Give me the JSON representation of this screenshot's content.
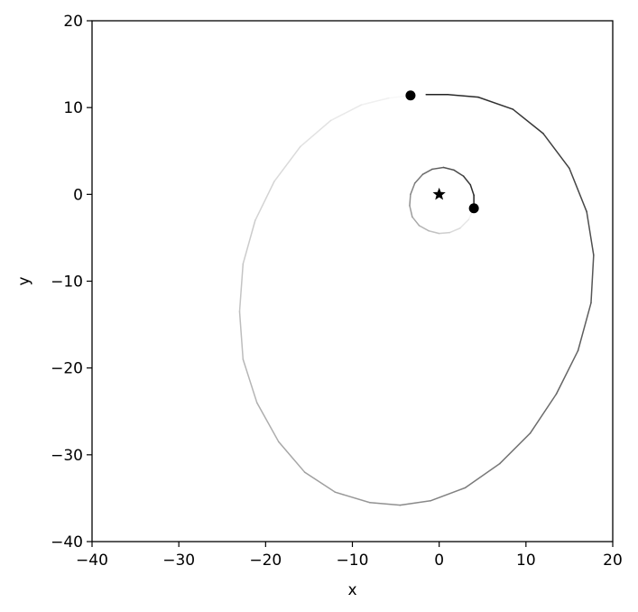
{
  "chart_data": {
    "type": "line",
    "title": "",
    "xlabel": "x",
    "ylabel": "y",
    "xlim": [
      -40,
      20
    ],
    "ylim": [
      -40,
      20
    ],
    "xticks": [
      -40,
      -30,
      -20,
      -10,
      0,
      10,
      20
    ],
    "yticks": [
      -40,
      -30,
      -20,
      -10,
      0,
      10,
      20
    ],
    "xtick_labels": [
      "−40",
      "−30",
      "−20",
      "−10",
      "0",
      "10",
      "20"
    ],
    "ytick_labels": [
      "−40",
      "−30",
      "−20",
      "−10",
      "0",
      "10",
      "20"
    ],
    "grid": false,
    "legend": "none",
    "central_star": {
      "x": 0,
      "y": 0,
      "marker": "star"
    },
    "series": [
      {
        "orbit": "inner",
        "points": [
          [
            4.0,
            -1.6
          ],
          [
            3.4,
            -2.9
          ],
          [
            2.4,
            -3.9
          ],
          [
            1.2,
            -4.4
          ],
          [
            0.0,
            -4.5
          ],
          [
            -1.2,
            -4.2
          ],
          [
            -2.3,
            -3.6
          ],
          [
            -3.1,
            -2.6
          ],
          [
            -3.4,
            -1.3
          ],
          [
            -3.3,
            0.0
          ],
          [
            -2.8,
            1.3
          ],
          [
            -1.9,
            2.3
          ],
          [
            -0.8,
            2.9
          ],
          [
            0.5,
            3.1
          ],
          [
            1.7,
            2.8
          ],
          [
            2.8,
            2.1
          ],
          [
            3.6,
            1.1
          ],
          [
            4.0,
            -0.1
          ],
          [
            4.0,
            -1.2
          ]
        ],
        "color_start": "#ffffff",
        "color_end": "#222222"
      },
      {
        "orbit": "outer",
        "points": [
          [
            -3.3,
            11.4
          ],
          [
            -5.8,
            11.1
          ],
          [
            -9.0,
            10.3
          ],
          [
            -12.5,
            8.5
          ],
          [
            -16.0,
            5.5
          ],
          [
            -19.0,
            1.5
          ],
          [
            -21.2,
            -3.0
          ],
          [
            -22.6,
            -8.0
          ],
          [
            -23.0,
            -13.5
          ],
          [
            -22.6,
            -19.0
          ],
          [
            -21.0,
            -24.0
          ],
          [
            -18.5,
            -28.5
          ],
          [
            -15.5,
            -32.0
          ],
          [
            -12.0,
            -34.3
          ],
          [
            -8.0,
            -35.5
          ],
          [
            -4.5,
            -35.8
          ],
          [
            -1.0,
            -35.3
          ],
          [
            3.0,
            -33.8
          ],
          [
            7.0,
            -31.0
          ],
          [
            10.5,
            -27.5
          ],
          [
            13.5,
            -23.0
          ],
          [
            16.0,
            -18.0
          ],
          [
            17.5,
            -12.5
          ],
          [
            17.8,
            -7.0
          ],
          [
            17.0,
            -2.0
          ],
          [
            15.0,
            3.0
          ],
          [
            12.0,
            7.0
          ],
          [
            8.5,
            9.8
          ],
          [
            4.5,
            11.2
          ],
          [
            1.0,
            11.5
          ],
          [
            -1.5,
            11.5
          ]
        ],
        "color_start": "#ffffff",
        "color_end": "#222222"
      }
    ],
    "markers": [
      {
        "x": -3.3,
        "y": 11.4,
        "marker": "circle"
      },
      {
        "x": 4.0,
        "y": -1.6,
        "marker": "circle"
      }
    ]
  }
}
